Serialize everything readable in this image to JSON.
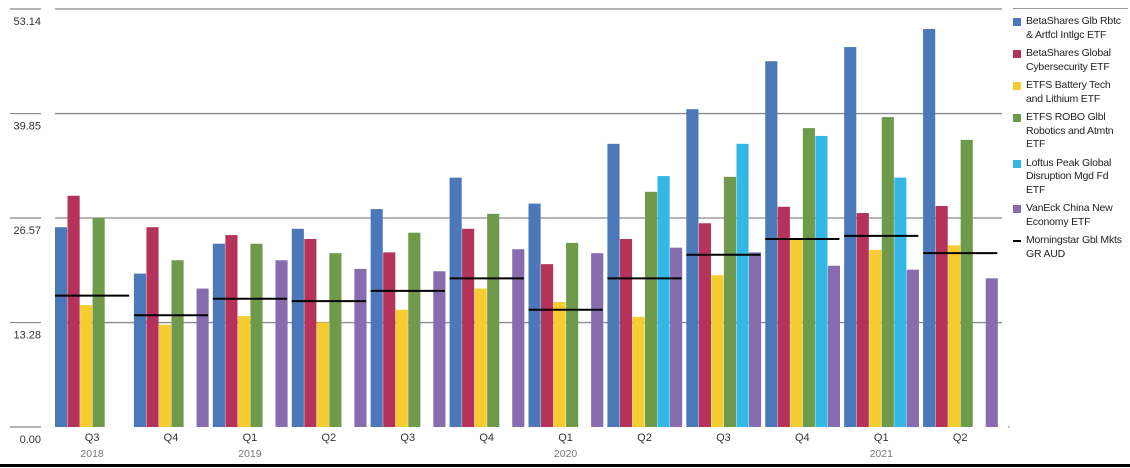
{
  "chart_data": {
    "type": "bar",
    "title": "",
    "xlabel": "",
    "ylabel": "",
    "ylim": [
      0,
      53.14
    ],
    "yticks": [
      "0.00",
      "13.28",
      "26.57",
      "39.85",
      "53.14"
    ],
    "ytick_values": [
      0,
      13.28,
      26.57,
      39.85,
      53.14
    ],
    "grid": true,
    "legend_position": "right",
    "categories": [
      "Q3",
      "Q4",
      "Q1",
      "Q2",
      "Q3",
      "Q4",
      "Q1",
      "Q2",
      "Q3",
      "Q4",
      "Q1",
      "Q2"
    ],
    "year_labels": [
      "2018",
      "",
      "2019",
      "",
      "",
      "",
      "2020",
      "",
      "",
      "",
      "2021",
      ""
    ],
    "series": [
      {
        "name": "BetaShares Glb Rbtc & Artfcl Intlgc ETF",
        "color": "#4a78b8",
        "values": [
          25.4,
          19.5,
          23.3,
          25.2,
          27.7,
          31.7,
          28.4,
          36.0,
          40.4,
          46.5,
          48.3,
          50.6
        ]
      },
      {
        "name": "BetaShares Global Cybersecurity ETF",
        "color": "#b5325a",
        "values": [
          29.4,
          25.4,
          24.4,
          23.9,
          22.2,
          25.2,
          20.7,
          23.9,
          25.9,
          28.0,
          27.2,
          28.1
        ]
      },
      {
        "name": "ETFS Battery Tech and Lithium ETF",
        "color": "#f5cd30",
        "values": [
          15.5,
          13.0,
          14.1,
          13.3,
          14.9,
          17.6,
          15.9,
          14.0,
          19.3,
          23.8,
          22.5,
          23.1
        ]
      },
      {
        "name": "ETFS ROBO Glbl Robotics and Atmtn ETF",
        "color": "#6f9a4c",
        "values": [
          26.6,
          21.2,
          23.3,
          22.1,
          24.7,
          27.1,
          23.4,
          29.9,
          31.8,
          38.0,
          39.4,
          36.5
        ]
      },
      {
        "name": "Loftus Peak Global Disruption Mgd Fd ETF",
        "color": "#33b8e6",
        "values": [
          null,
          null,
          null,
          null,
          null,
          null,
          null,
          31.9,
          36.0,
          37.0,
          31.7,
          null
        ]
      },
      {
        "name": "VanEck China New Economy ETF",
        "color": "#876db0",
        "values": [
          null,
          17.6,
          21.2,
          20.1,
          19.8,
          22.6,
          22.1,
          22.8,
          22.2,
          20.5,
          20.0,
          18.9
        ]
      }
    ],
    "benchmark": {
      "name": "Morningstar Gbl Mkts GR AUD",
      "color": "#000000",
      "values": [
        16.7,
        14.2,
        16.3,
        16.0,
        17.3,
        18.9,
        14.9,
        18.9,
        21.9,
        23.9,
        24.3,
        22.1
      ]
    }
  }
}
